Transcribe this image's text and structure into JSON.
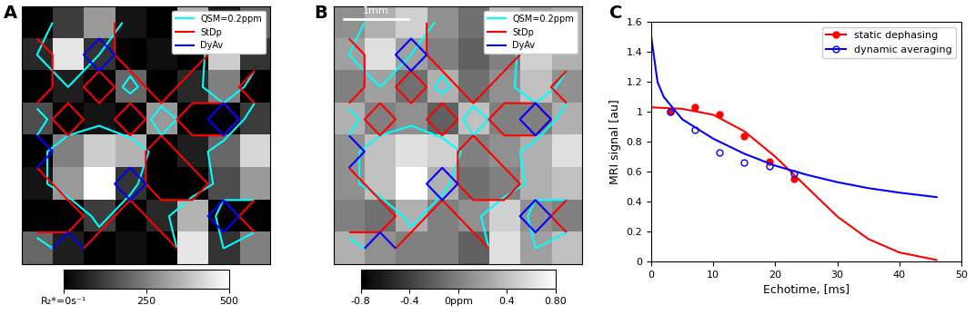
{
  "chart_data": [
    {
      "type": "heatmap",
      "label": "A",
      "tick_labels": false,
      "legend": "upper right",
      "cells": [
        [
          0,
          120,
          300,
          40,
          0,
          350,
          60,
          200
        ],
        [
          80,
          450,
          100,
          0,
          30,
          0,
          400,
          100
        ],
        [
          0,
          60,
          0,
          200,
          0,
          80,
          250,
          0
        ],
        [
          150,
          0,
          40,
          0,
          300,
          0,
          0,
          120
        ],
        [
          0,
          250,
          400,
          350,
          0,
          60,
          200,
          420
        ],
        [
          40,
          300,
          500,
          100,
          0,
          0,
          150,
          300
        ],
        [
          0,
          0,
          120,
          0,
          80,
          350,
          0,
          0
        ],
        [
          200,
          60,
          0,
          30,
          0,
          450,
          100,
          250
        ]
      ],
      "colorbar": {
        "range": [
          0,
          500
        ],
        "ticks": [
          {
            "value": 0,
            "label": "R₂*=0s⁻¹"
          },
          250,
          500
        ]
      },
      "series": [
        {
          "name": "QSM=0.2ppm",
          "color": "#00ffff",
          "type": "contour",
          "level": 0.2,
          "cells": [
            [
              0.1,
              0.3,
              0.5,
              0.1,
              -0.1,
              0.4,
              0.2,
              0.3
            ],
            [
              0.2,
              0.6,
              0.2,
              0.0,
              -0.2,
              0.0,
              0.5,
              0.3
            ],
            [
              0.0,
              0.2,
              -0.1,
              0.3,
              -0.1,
              0.1,
              0.4,
              0.1
            ],
            [
              0.3,
              0.0,
              0.1,
              -0.2,
              0.4,
              0.0,
              0.0,
              0.3
            ],
            [
              0.1,
              0.4,
              0.6,
              0.5,
              0.0,
              0.1,
              0.3,
              0.6
            ],
            [
              0.1,
              0.4,
              0.8,
              0.3,
              -0.1,
              0.0,
              0.3,
              0.4
            ],
            [
              0.0,
              -0.1,
              0.3,
              0.0,
              0.1,
              0.5,
              0.1,
              0.0
            ],
            [
              0.3,
              0.1,
              0.0,
              0.0,
              -0.2,
              0.6,
              0.2,
              0.4
            ]
          ]
        },
        {
          "name": "StDp",
          "color": "#ff0000",
          "type": "contour",
          "cells": [
            [
              0,
              0,
              0,
              1,
              1,
              0,
              0,
              0
            ],
            [
              1,
              0,
              0,
              1,
              1,
              1,
              0,
              0
            ],
            [
              1,
              0,
              1,
              0,
              1,
              0,
              0,
              1
            ],
            [
              0,
              1,
              0,
              1,
              0,
              1,
              1,
              0
            ],
            [
              0,
              0,
              0,
              0,
              1,
              0,
              0,
              0
            ],
            [
              1,
              0,
              0,
              0,
              1,
              1,
              0,
              0
            ],
            [
              1,
              1,
              0,
              1,
              0,
              0,
              0,
              1
            ],
            [
              0,
              0,
              1,
              1,
              1,
              0,
              0,
              0
            ]
          ]
        },
        {
          "name": "DyAv",
          "color": "#0000ff",
          "type": "contour",
          "cells": [
            [
              0,
              0,
              0,
              0,
              0,
              0,
              0,
              0
            ],
            [
              0,
              0,
              1,
              0,
              0,
              0,
              0,
              0
            ],
            [
              0,
              0,
              0,
              0,
              0,
              0,
              0,
              0
            ],
            [
              0,
              0,
              0,
              0,
              0,
              0,
              1,
              0
            ],
            [
              1,
              0,
              0,
              0,
              0,
              0,
              0,
              0
            ],
            [
              0,
              0,
              0,
              1,
              0,
              0,
              0,
              0
            ],
            [
              0,
              0,
              0,
              0,
              0,
              0,
              1,
              0
            ],
            [
              0,
              1,
              0,
              0,
              0,
              0,
              0,
              0
            ]
          ]
        }
      ]
    },
    {
      "type": "heatmap",
      "label": "B",
      "tick_labels": false,
      "legend": "upper right",
      "scale_bar": "1mm",
      "cells": [
        [
          0.1,
          0.3,
          0.5,
          0.1,
          -0.1,
          0.4,
          0.2,
          0.3
        ],
        [
          0.2,
          0.6,
          0.2,
          0.0,
          -0.2,
          0.0,
          0.5,
          0.3
        ],
        [
          0.0,
          0.2,
          -0.1,
          0.3,
          -0.1,
          0.1,
          0.4,
          0.1
        ],
        [
          0.3,
          0.0,
          0.1,
          -0.2,
          0.4,
          0.0,
          0.0,
          0.3
        ],
        [
          0.1,
          0.4,
          0.6,
          0.5,
          0.0,
          0.1,
          0.3,
          0.6
        ],
        [
          0.1,
          0.4,
          0.8,
          0.3,
          -0.1,
          0.0,
          0.3,
          0.4
        ],
        [
          0.0,
          -0.1,
          0.3,
          0.0,
          0.1,
          0.5,
          0.1,
          0.0
        ],
        [
          0.3,
          0.1,
          0.0,
          0.0,
          -0.2,
          0.6,
          0.2,
          0.4
        ]
      ],
      "colorbar": {
        "range": [
          -0.8,
          0.8
        ],
        "ticks": [
          -0.8,
          -0.4,
          {
            "value": 0,
            "label": "0ppm"
          },
          0.4,
          {
            "value": 0.8,
            "label": "0.80"
          }
        ]
      },
      "series": [
        {
          "name": "QSM=0.2ppm",
          "color": "#00ffff",
          "type": "contour",
          "level": 0.2,
          "cells": [
            [
              0.1,
              0.3,
              0.5,
              0.1,
              -0.1,
              0.4,
              0.2,
              0.3
            ],
            [
              0.2,
              0.6,
              0.2,
              0.0,
              -0.2,
              0.0,
              0.5,
              0.3
            ],
            [
              0.0,
              0.2,
              -0.1,
              0.3,
              -0.1,
              0.1,
              0.4,
              0.1
            ],
            [
              0.3,
              0.0,
              0.1,
              -0.2,
              0.4,
              0.0,
              0.0,
              0.3
            ],
            [
              0.1,
              0.4,
              0.6,
              0.5,
              0.0,
              0.1,
              0.3,
              0.6
            ],
            [
              0.1,
              0.4,
              0.8,
              0.3,
              -0.1,
              0.0,
              0.3,
              0.4
            ],
            [
              0.0,
              -0.1,
              0.3,
              0.0,
              0.1,
              0.5,
              0.1,
              0.0
            ],
            [
              0.3,
              0.1,
              0.0,
              0.0,
              -0.2,
              0.6,
              0.2,
              0.4
            ]
          ]
        },
        {
          "name": "StDp",
          "color": "#ff0000",
          "type": "contour",
          "cells": [
            [
              0,
              0,
              0,
              1,
              1,
              0,
              0,
              0
            ],
            [
              1,
              0,
              0,
              1,
              1,
              1,
              0,
              0
            ],
            [
              1,
              0,
              1,
              0,
              1,
              0,
              0,
              1
            ],
            [
              0,
              1,
              0,
              1,
              0,
              1,
              1,
              0
            ],
            [
              0,
              0,
              0,
              0,
              1,
              0,
              0,
              0
            ],
            [
              1,
              0,
              0,
              0,
              1,
              1,
              0,
              0
            ],
            [
              1,
              1,
              0,
              1,
              0,
              0,
              0,
              1
            ],
            [
              0,
              0,
              1,
              1,
              1,
              0,
              0,
              0
            ]
          ]
        },
        {
          "name": "DyAv",
          "color": "#0000ff",
          "type": "contour",
          "cells": [
            [
              0,
              0,
              0,
              0,
              0,
              0,
              0,
              0
            ],
            [
              0,
              0,
              1,
              0,
              0,
              0,
              0,
              0
            ],
            [
              0,
              0,
              0,
              0,
              0,
              0,
              0,
              0
            ],
            [
              0,
              0,
              0,
              0,
              0,
              0,
              1,
              0
            ],
            [
              1,
              0,
              0,
              0,
              0,
              0,
              0,
              0
            ],
            [
              0,
              0,
              0,
              1,
              0,
              0,
              0,
              0
            ],
            [
              0,
              0,
              0,
              0,
              0,
              0,
              1,
              0
            ],
            [
              0,
              1,
              0,
              0,
              0,
              0,
              0,
              0
            ]
          ]
        }
      ]
    },
    {
      "type": "scatter",
      "label": "C",
      "x_label": "Echotime, [ms]",
      "y_label": "MRI signal [au]",
      "xlim": [
        0,
        50
      ],
      "xticks": [
        0,
        10,
        20,
        30,
        40,
        50
      ],
      "ylim": [
        0,
        1.6
      ],
      "yticks": [
        0,
        0.2,
        0.4,
        0.6,
        0.8,
        1,
        1.2,
        1.4,
        1.6
      ],
      "legend": "upper right",
      "series": [
        {
          "name": "static dephasing",
          "color": "#ff0000",
          "marker": "filled_circle",
          "line_style": "solid",
          "x": [
            3,
            7,
            11,
            15,
            19,
            23
          ],
          "values": [
            1.0,
            1.03,
            0.98,
            0.84,
            0.67,
            0.55
          ],
          "fit_x": [
            0,
            5,
            10,
            15,
            20,
            25,
            30,
            35,
            40,
            46
          ],
          "fit_values": [
            1.03,
            1.02,
            0.98,
            0.87,
            0.7,
            0.5,
            0.3,
            0.15,
            0.06,
            0.01
          ]
        },
        {
          "name": "dynamic averaging",
          "color": "#0000ff",
          "marker": "open_circle",
          "line_style": "solid",
          "x": [
            3,
            7,
            11,
            15,
            19,
            23
          ],
          "values": [
            1.0,
            0.88,
            0.73,
            0.66,
            0.64,
            0.59
          ],
          "fit_x": [
            0,
            1,
            2,
            5,
            10,
            15,
            20,
            25,
            30,
            35,
            40,
            46
          ],
          "fit_values": [
            1.5,
            1.2,
            1.1,
            0.95,
            0.82,
            0.72,
            0.64,
            0.58,
            0.53,
            0.49,
            0.46,
            0.43
          ]
        }
      ]
    }
  ]
}
